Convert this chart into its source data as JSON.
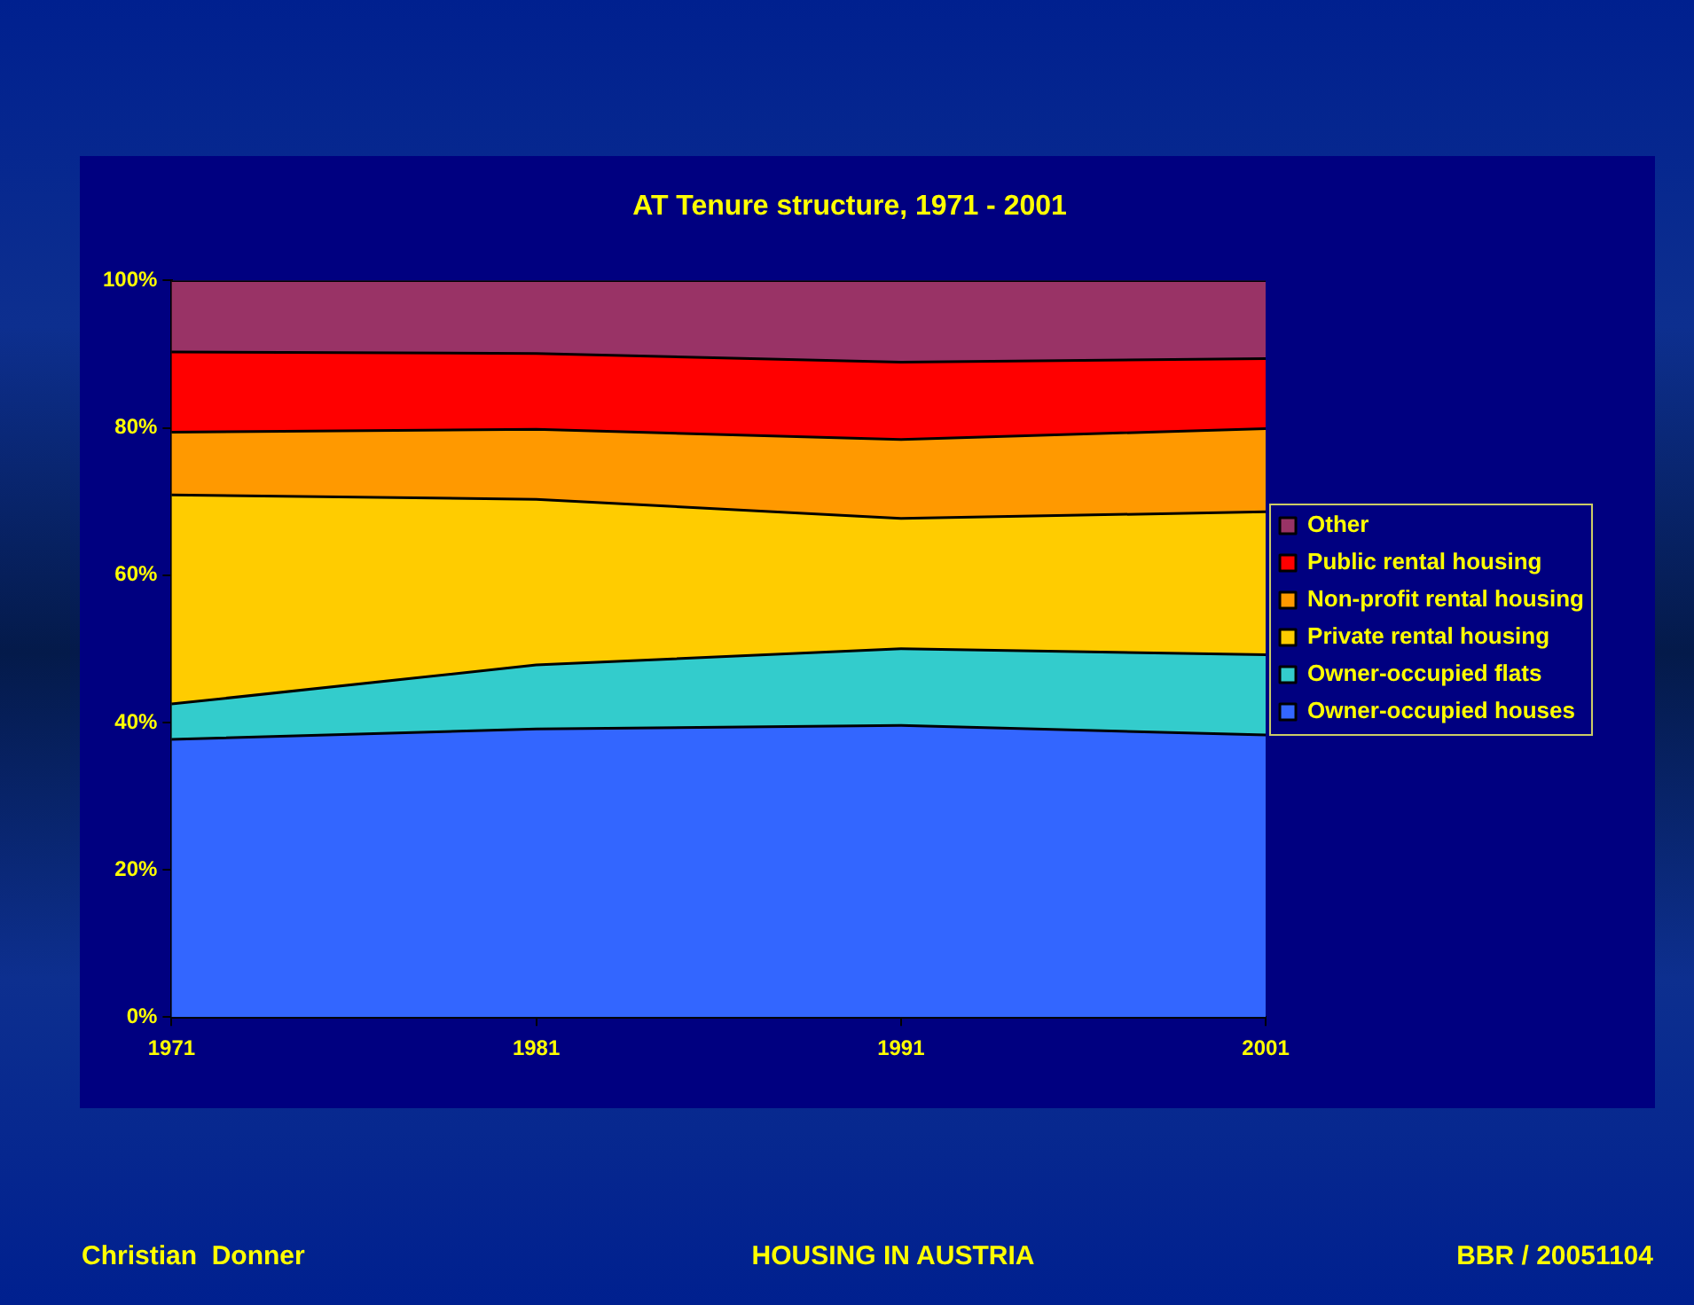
{
  "chart_data": {
    "type": "area",
    "title": "AT Tenure structure, 1971 - 2001",
    "categories": [
      "1971",
      "1981",
      "1991",
      "2001"
    ],
    "stacked": true,
    "series": [
      {
        "name": "Owner-occupied houses",
        "color": "#3366ff",
        "values": [
          37.7,
          39.1,
          39.6,
          38.3
        ]
      },
      {
        "name": "Owner-occupied flats",
        "color": "#33cccc",
        "values": [
          4.8,
          8.7,
          10.4,
          10.9
        ]
      },
      {
        "name": "Private rental housing",
        "color": "#ffcc00",
        "values": [
          28.4,
          22.5,
          17.7,
          19.4
        ]
      },
      {
        "name": "Non-profit rental housing",
        "color": "#ff9900",
        "values": [
          8.5,
          9.5,
          10.7,
          11.3
        ]
      },
      {
        "name": "Public rental housing",
        "color": "#ff0000",
        "values": [
          10.9,
          10.3,
          10.5,
          9.5
        ]
      },
      {
        "name": "Other",
        "color": "#993366",
        "values": [
          9.7,
          9.9,
          11.1,
          10.6
        ]
      }
    ],
    "ylim": [
      0,
      100
    ],
    "yticks": [
      {
        "value": 0,
        "label": "0%"
      },
      {
        "value": 20,
        "label": "20%"
      },
      {
        "value": 40,
        "label": "40%"
      },
      {
        "value": 60,
        "label": "60%"
      },
      {
        "value": 80,
        "label": "80%"
      },
      {
        "value": 100,
        "label": "100%"
      }
    ],
    "grid": false,
    "legend": "right",
    "annotations": [
      "Christian  Donner",
      "HOUSING IN AUSTRIA",
      "BBR / 20051104"
    ]
  }
}
